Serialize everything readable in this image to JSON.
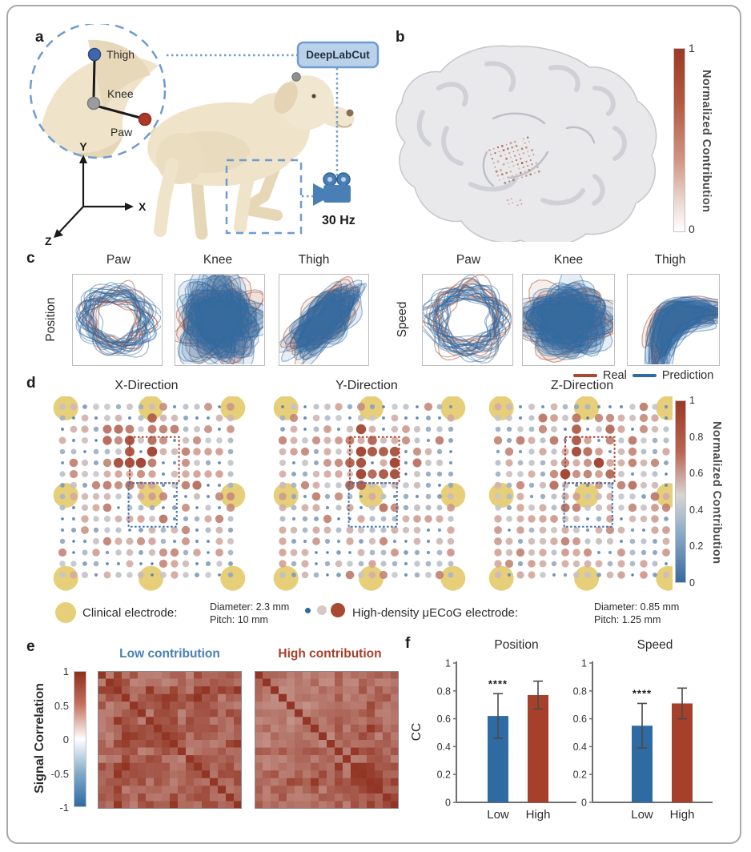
{
  "figure": {
    "panel_labels": {
      "a": "a",
      "b": "b",
      "c": "c",
      "d": "d",
      "e": "e",
      "f": "f"
    },
    "colors": {
      "real_red": "#a84a31",
      "prediction_blue": "#2f6ba3",
      "clinical_yellow": "#e6cf78",
      "dashed_blue": "#6f9bd1",
      "dark_red": "#9c3a26"
    },
    "panel_a": {
      "joints": [
        {
          "label": "Thigh",
          "color": "#4266ab"
        },
        {
          "label": "Knee",
          "color": "#9c9c9e"
        },
        {
          "label": "Paw",
          "color": "#ab3a28"
        }
      ],
      "deeplabcut_label": "DeepLabCut",
      "framerate_label": "30 Hz",
      "axis_labels": {
        "y": "Y",
        "x": "X",
        "z": "Z"
      }
    },
    "panel_b": {
      "colorbar": {
        "max": "1",
        "min": "0",
        "label": "Normalized Contribution"
      }
    },
    "panel_c": {
      "row_labels": {
        "position": "Position",
        "speed": "Speed"
      },
      "col_titles": [
        "Paw",
        "Knee",
        "Thigh"
      ],
      "legend": [
        {
          "label": "Real",
          "color": "#a84a31"
        },
        {
          "label": "Prediction",
          "color": "#2f6ba3"
        }
      ]
    },
    "panel_d": {
      "titles": [
        "X-Direction",
        "Y-Direction",
        "Z-Direction"
      ],
      "colorbar": {
        "ticks": [
          "1",
          "0.8",
          "0.6",
          "0.4",
          "0.2",
          "0"
        ],
        "label": "Normalized Contribution"
      },
      "electrode_legend": {
        "clinical_label": "Clinical electrode:",
        "clinical_specs": [
          "Diameter: 2.3 mm",
          "Pitch: 10 mm"
        ],
        "uecog_label": "High-density μECoG electrode:",
        "uecog_specs": [
          "Diameter: 0.85 mm",
          "Pitch: 1.25 mm"
        ]
      }
    },
    "panel_e": {
      "titles": [
        {
          "label": "Low contribution",
          "color": "#4a7fb5"
        },
        {
          "label": "High contribution",
          "color": "#a6402a"
        }
      ],
      "colorbar": {
        "ticks": [
          "1",
          "0.5",
          "0",
          "-0.5",
          "-1"
        ],
        "label": "Signal Correlation"
      }
    }
  },
  "chart_data": [
    {
      "panel": "f-left",
      "type": "bar",
      "title": "Position",
      "ylabel": "CC",
      "ylim": [
        0,
        1
      ],
      "ytick_labels": [
        "0",
        "0.2",
        "0.4",
        "0.6",
        "0.8",
        "1"
      ],
      "categories": [
        "Low",
        "High"
      ],
      "values": [
        0.62,
        0.77
      ],
      "errors": [
        0.16,
        0.1
      ],
      "bar_colors": [
        "#2f6ba3",
        "#a6402a"
      ],
      "significance": {
        "label": "****",
        "category_index": 0
      },
      "bar_centers": [
        52,
        102
      ]
    },
    {
      "panel": "f-right",
      "type": "bar",
      "title": "Speed",
      "ylabel": "CC",
      "ylim": [
        0,
        1
      ],
      "ytick_labels": [
        "0",
        "0.2",
        "0.4",
        "0.6",
        "0.8",
        "1"
      ],
      "categories": [
        "Low",
        "High"
      ],
      "values": [
        0.55,
        0.71
      ],
      "errors": [
        0.16,
        0.11
      ],
      "bar_colors": [
        "#2f6ba3",
        "#a6402a"
      ],
      "significance": {
        "label": "****",
        "category_index": 0
      },
      "bar_centers": [
        62,
        112
      ]
    },
    {
      "panel": "d",
      "type": "scatter",
      "subtype": "electrode-contribution-grid",
      "titles": [
        "X-Direction",
        "Y-Direction",
        "Z-Direction"
      ],
      "grid": "16x16",
      "value_range": [
        0,
        1
      ],
      "colormap": "blue(0) - gray(0.5) - dark red(1)",
      "encoding": "dot size and color encode normalized contribution",
      "seeds": [
        11,
        47,
        83
      ]
    },
    {
      "panel": "e",
      "type": "heatmap",
      "titles": [
        "Low contribution",
        "High contribution"
      ],
      "matrix": "18x18 channel-pair signal correlation, values approx 0.4-1.0 (diagonal = 1)",
      "value_range": [
        -1,
        1
      ],
      "seeds": [
        7,
        29
      ]
    },
    {
      "panel": "c",
      "type": "line",
      "subtype": "overlaid trajectories (real vs prediction)",
      "groups": [
        "Position",
        "Speed"
      ],
      "categories": [
        "Paw",
        "Knee",
        "Thigh"
      ],
      "series": [
        "Real",
        "Prediction"
      ]
    }
  ]
}
